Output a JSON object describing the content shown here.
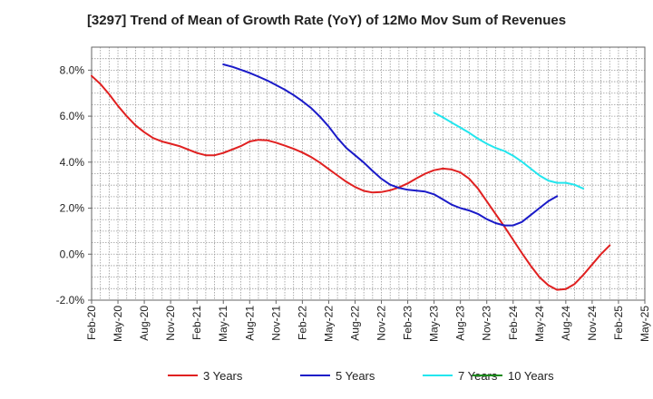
{
  "chart_data": {
    "type": "line",
    "title": "[3297]  Trend of Mean of Growth Rate (YoY) of 12Mo Mov Sum of Revenues",
    "xlabel": "",
    "ylabel": "",
    "ylim": [
      -2.0,
      9.0
    ],
    "yticks": [
      -2.0,
      0.0,
      2.0,
      4.0,
      6.0,
      8.0
    ],
    "ytick_labels": [
      "-2.0%",
      "0.0%",
      "2.0%",
      "4.0%",
      "6.0%",
      "8.0%"
    ],
    "x_start": "Feb-20",
    "x_end": "May-25",
    "xtick_labels": [
      "Feb-20",
      "May-20",
      "Aug-20",
      "Nov-20",
      "Feb-21",
      "May-21",
      "Aug-21",
      "Nov-21",
      "Feb-22",
      "May-22",
      "Aug-22",
      "Nov-22",
      "Feb-23",
      "May-23",
      "Aug-23",
      "Nov-23",
      "Feb-24",
      "May-24",
      "Aug-24",
      "Nov-24",
      "Feb-25",
      "May-25"
    ],
    "grid": true,
    "legend_position": "bottom",
    "series": [
      {
        "name": "3 Years",
        "color": "#e02020",
        "start_index": 0,
        "values": [
          7.75,
          7.4,
          6.95,
          6.45,
          6.0,
          5.6,
          5.3,
          5.05,
          4.9,
          4.8,
          4.7,
          4.55,
          4.4,
          4.3,
          4.3,
          4.4,
          4.55,
          4.7,
          4.9,
          4.97,
          4.95,
          4.85,
          4.72,
          4.58,
          4.42,
          4.22,
          3.98,
          3.7,
          3.42,
          3.15,
          2.92,
          2.75,
          2.68,
          2.7,
          2.78,
          2.9,
          3.08,
          3.3,
          3.5,
          3.65,
          3.72,
          3.68,
          3.55,
          3.28,
          2.85,
          2.3,
          1.75,
          1.2,
          0.62,
          0.05,
          -0.5,
          -1.0,
          -1.35,
          -1.55,
          -1.52,
          -1.3,
          -0.9,
          -0.45,
          0.0,
          0.38
        ]
      },
      {
        "name": "5 Years",
        "color": "#1a1ac8",
        "start_index": 15,
        "values": [
          8.25,
          8.15,
          8.02,
          7.88,
          7.72,
          7.55,
          7.35,
          7.15,
          6.92,
          6.65,
          6.35,
          5.98,
          5.55,
          5.05,
          4.62,
          4.3,
          3.98,
          3.62,
          3.28,
          3.02,
          2.88,
          2.8,
          2.76,
          2.72,
          2.6,
          2.38,
          2.15,
          2.0,
          1.9,
          1.75,
          1.52,
          1.35,
          1.25,
          1.25,
          1.4,
          1.7,
          2.0,
          2.3,
          2.52
        ]
      },
      {
        "name": "7 Years",
        "color": "#22e6ee",
        "start_index": 39,
        "values": [
          6.15,
          5.95,
          5.72,
          5.5,
          5.28,
          5.02,
          4.8,
          4.62,
          4.48,
          4.28,
          4.02,
          3.72,
          3.42,
          3.2,
          3.1,
          3.1,
          3.02,
          2.85
        ]
      },
      {
        "name": "10 Years",
        "color": "#1a8a1a",
        "start_index": 0,
        "values": []
      }
    ]
  }
}
